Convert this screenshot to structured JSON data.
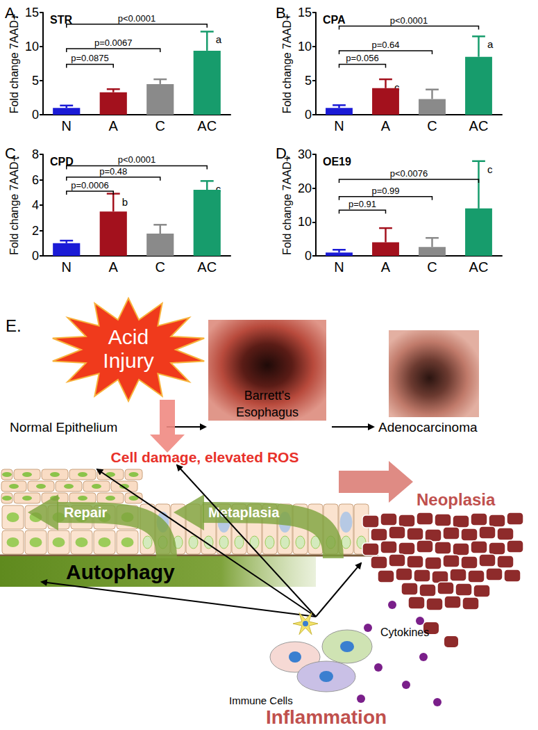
{
  "chart_data": [
    {
      "type": "bar",
      "panel": "A.",
      "title": "STR",
      "y_label": "Fold change 7AAD+",
      "categories": [
        "N",
        "A",
        "C",
        "AC"
      ],
      "values": [
        1.0,
        3.3,
        4.5,
        9.4
      ],
      "errors": [
        0.35,
        0.45,
        0.7,
        2.8
      ],
      "colors": [
        "#1b1bd6",
        "#a3111d",
        "#8a8a8a",
        "#179c6c"
      ],
      "ylim": [
        0,
        15
      ],
      "yticks": [
        0,
        5,
        10,
        15
      ],
      "grid": false,
      "annotations": [
        {
          "category": "AC",
          "text": "a"
        }
      ],
      "comparisons": [
        {
          "from": "N",
          "to": "A",
          "y": 7.4,
          "label": "p=0.0875"
        },
        {
          "from": "N",
          "to": "C",
          "y": 9.7,
          "label": "p=0.0067"
        },
        {
          "from": "N",
          "to": "AC",
          "y": 13.3,
          "label": "p<0.0001"
        }
      ]
    },
    {
      "type": "bar",
      "panel": "B.",
      "title": "CPA",
      "y_label": "Fold change 7AAD+",
      "categories": [
        "N",
        "A",
        "C",
        "AC"
      ],
      "values": [
        1.0,
        3.9,
        2.3,
        8.5
      ],
      "errors": [
        0.4,
        1.3,
        1.4,
        3.0
      ],
      "colors": [
        "#1b1bd6",
        "#a3111d",
        "#8a8a8a",
        "#179c6c"
      ],
      "ylim": [
        0,
        15
      ],
      "yticks": [
        0,
        5,
        10,
        15
      ],
      "grid": false,
      "annotations": [
        {
          "category": "A",
          "text": "c"
        },
        {
          "category": "AC",
          "text": "a"
        }
      ],
      "comparisons": [
        {
          "from": "N",
          "to": "A",
          "y": 7.4,
          "label": "p=0.056"
        },
        {
          "from": "N",
          "to": "C",
          "y": 9.4,
          "label": "p=0.64"
        },
        {
          "from": "N",
          "to": "AC",
          "y": 13.0,
          "label": "p<0.0001"
        }
      ]
    },
    {
      "type": "bar",
      "panel": "C.",
      "title": "CPD",
      "y_label": "Fold change 7AAD+",
      "categories": [
        "N",
        "A",
        "C",
        "AC"
      ],
      "values": [
        1.0,
        3.5,
        1.75,
        5.2
      ],
      "errors": [
        0.2,
        1.4,
        0.7,
        0.7
      ],
      "colors": [
        "#1b1bd6",
        "#a3111d",
        "#8a8a8a",
        "#179c6c"
      ],
      "ylim": [
        0,
        8
      ],
      "yticks": [
        0,
        2,
        4,
        6,
        8
      ],
      "grid": false,
      "annotations": [
        {
          "category": "A",
          "text": "b"
        },
        {
          "category": "AC",
          "text": "c"
        }
      ],
      "comparisons": [
        {
          "from": "N",
          "to": "A",
          "y": 5.1,
          "label": "p=0.0006"
        },
        {
          "from": "N",
          "to": "C",
          "y": 6.2,
          "label": "p=0.48"
        },
        {
          "from": "N",
          "to": "AC",
          "y": 7.1,
          "label": "p<0.0001"
        }
      ]
    },
    {
      "type": "bar",
      "panel": "D.",
      "title": "OE19",
      "y_label": "Fold change 7AAD+",
      "categories": [
        "N",
        "A",
        "C",
        "AC"
      ],
      "values": [
        1.0,
        4.0,
        2.6,
        14.0
      ],
      "errors": [
        0.8,
        4.2,
        2.7,
        14.0
      ],
      "colors": [
        "#1b1bd6",
        "#a3111d",
        "#8a8a8a",
        "#179c6c"
      ],
      "ylim": [
        0,
        30
      ],
      "yticks": [
        0,
        10,
        20,
        30
      ],
      "grid": false,
      "annotations": [
        {
          "category": "AC",
          "text": "c"
        }
      ],
      "comparisons": [
        {
          "from": "N",
          "to": "A",
          "y": 13.5,
          "label": "p=0.91"
        },
        {
          "from": "N",
          "to": "C",
          "y": 17.5,
          "label": "p=0.99"
        },
        {
          "from": "N",
          "to": "AC",
          "y": 22.6,
          "label": "p<0.0076"
        }
      ]
    }
  ],
  "diagram": {
    "panel": "E.",
    "acid_injury": [
      "Acid",
      "Injury"
    ],
    "normal": "Normal Epithelium",
    "barretts": [
      "Barrett's",
      "Esophagus"
    ],
    "adenocarcinoma": "Adenocarcinoma",
    "damage": "Cell damage, elevated ROS",
    "repair": "Repair",
    "metaplasia": "Metaplasia",
    "neoplasia": "Neoplasia",
    "autophagy": "Autophagy",
    "cytokines": "Cytokines",
    "immune_cells": "Immune Cells",
    "inflammation": "Inflammation"
  }
}
